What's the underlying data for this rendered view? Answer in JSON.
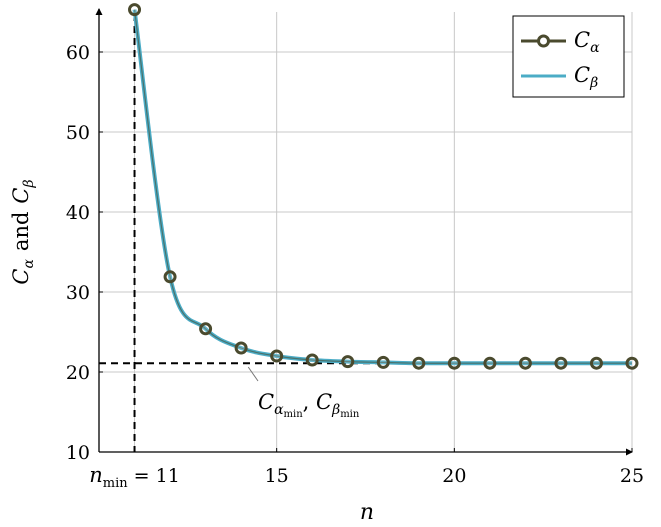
{
  "chart_data": {
    "type": "line",
    "xlabel": "n",
    "ylabel": {
      "c": "C",
      "sub_alpha": "α",
      "and": "and",
      "sub_beta": "β"
    },
    "xlim": [
      10,
      25
    ],
    "ylim": [
      10,
      65
    ],
    "grid": true,
    "legend_position": "top-right",
    "x_ticks": [
      {
        "value": 11,
        "base": "n",
        "sub": "min",
        "rest": " = 11"
      },
      {
        "value": 15,
        "label": "15"
      },
      {
        "value": 20,
        "label": "20"
      },
      {
        "value": 25,
        "label": "25"
      }
    ],
    "y_ticks": [
      10,
      20,
      30,
      40,
      50,
      60
    ],
    "series": [
      {
        "name": "C_α",
        "legend_base": "C",
        "legend_sub": "α",
        "color": "#4a4a2e",
        "marker": "circle",
        "x": [
          11,
          12,
          13,
          14,
          15,
          16,
          17,
          18,
          19,
          20,
          21,
          22,
          23,
          24,
          25
        ],
        "y": [
          65.3,
          31.9,
          25.4,
          23.0,
          22.0,
          21.5,
          21.3,
          21.2,
          21.1,
          21.1,
          21.1,
          21.1,
          21.1,
          21.1,
          21.1
        ]
      },
      {
        "name": "C_β",
        "legend_base": "C",
        "legend_sub": "β",
        "color": "#4bacc6",
        "marker": "none",
        "x": [
          11,
          12,
          13,
          14,
          15,
          16,
          17,
          18,
          19,
          20,
          21,
          22,
          23,
          24,
          25
        ],
        "y": [
          65.3,
          31.9,
          25.4,
          23.0,
          22.0,
          21.5,
          21.3,
          21.2,
          21.1,
          21.1,
          21.1,
          21.1,
          21.1,
          21.1,
          21.1
        ]
      }
    ],
    "reference_lines": {
      "x_min": 11,
      "y_min": 21.1
    },
    "annotation": {
      "c1": "C",
      "s1": "α",
      "t1": "min",
      "sep": ", ",
      "c2": "C",
      "s2": "β",
      "t2": "min",
      "at": [
        14.2,
        21.0
      ]
    }
  }
}
